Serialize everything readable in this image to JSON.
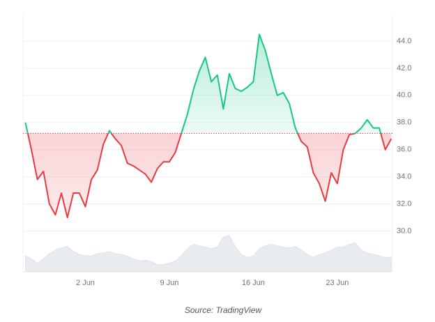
{
  "chart_data": {
    "type": "baseline",
    "source": "Source: TradingView",
    "x": [
      -3,
      -2.5,
      -2,
      -1.5,
      -1,
      -0.5,
      0,
      0.5,
      1,
      1.5,
      2,
      2.5,
      3,
      3.5,
      4,
      4.5,
      5,
      5.5,
      6,
      6.5,
      7,
      7.5,
      8,
      8.5,
      9,
      9.5,
      10,
      10.5,
      11,
      11.5,
      12,
      12.5,
      13,
      13.5,
      14,
      14.5,
      15,
      15.5,
      16,
      16.5,
      17,
      17.5,
      18,
      18.5,
      19,
      19.5,
      20,
      20.5,
      21,
      21.5,
      22,
      22.5,
      23,
      23.5,
      24,
      24.5,
      25,
      25.5,
      26,
      26.5,
      27,
      27.5
    ],
    "values": [
      38.0,
      36.0,
      33.8,
      34.4,
      32.0,
      31.2,
      32.8,
      31.0,
      32.8,
      32.8,
      31.8,
      33.8,
      34.5,
      36.4,
      37.4,
      36.8,
      36.3,
      35.0,
      34.8,
      34.5,
      34.2,
      33.6,
      34.6,
      35.1,
      35.1,
      35.8,
      37.2,
      38.6,
      40.4,
      41.8,
      42.8,
      41.0,
      41.5,
      39.0,
      41.6,
      40.5,
      40.3,
      40.6,
      41.0,
      44.5,
      43.3,
      41.6,
      40.0,
      40.2,
      39.4,
      37.6,
      36.6,
      36.2,
      34.3,
      33.5,
      32.2,
      34.3,
      33.5,
      36.0,
      37.1,
      37.2,
      37.6,
      38.2,
      37.6,
      37.6,
      36.0,
      36.8
    ],
    "volume": [
      22,
      18,
      12,
      18,
      25,
      30,
      33,
      35,
      28,
      24,
      22,
      22,
      25,
      26,
      28,
      25,
      24,
      22,
      18,
      15,
      16,
      14,
      10,
      10,
      12,
      15,
      22,
      32,
      38,
      36,
      34,
      32,
      34,
      48,
      50,
      35,
      24,
      20,
      22,
      32,
      36,
      38,
      36,
      34,
      33,
      35,
      30,
      24,
      20,
      24,
      26,
      30,
      34,
      34,
      38,
      40,
      30,
      26,
      24,
      22,
      20,
      20
    ],
    "baseline": 37.2,
    "up_color": "#16c784",
    "down_color": "#ea3943",
    "volume_color": "#e8ebef",
    "xlim": [
      -3.2,
      27.6
    ],
    "xticks": [
      {
        "value": 2,
        "label": "2 Jun"
      },
      {
        "value": 9,
        "label": "9 Jun"
      },
      {
        "value": 16,
        "label": "16 Jun"
      },
      {
        "value": 23,
        "label": "23 Jun"
      }
    ],
    "ylim": [
      27,
      46
    ],
    "yticks": [
      {
        "value": 30,
        "label": "30.0"
      },
      {
        "value": 32,
        "label": "32.0"
      },
      {
        "value": 34,
        "label": "34.0"
      },
      {
        "value": 36,
        "label": "36.0"
      },
      {
        "value": 38,
        "label": "38.0"
      },
      {
        "value": 40,
        "label": "40.0"
      },
      {
        "value": 42,
        "label": "42.0"
      },
      {
        "value": 44,
        "label": "44.0"
      }
    ],
    "grid": true
  }
}
